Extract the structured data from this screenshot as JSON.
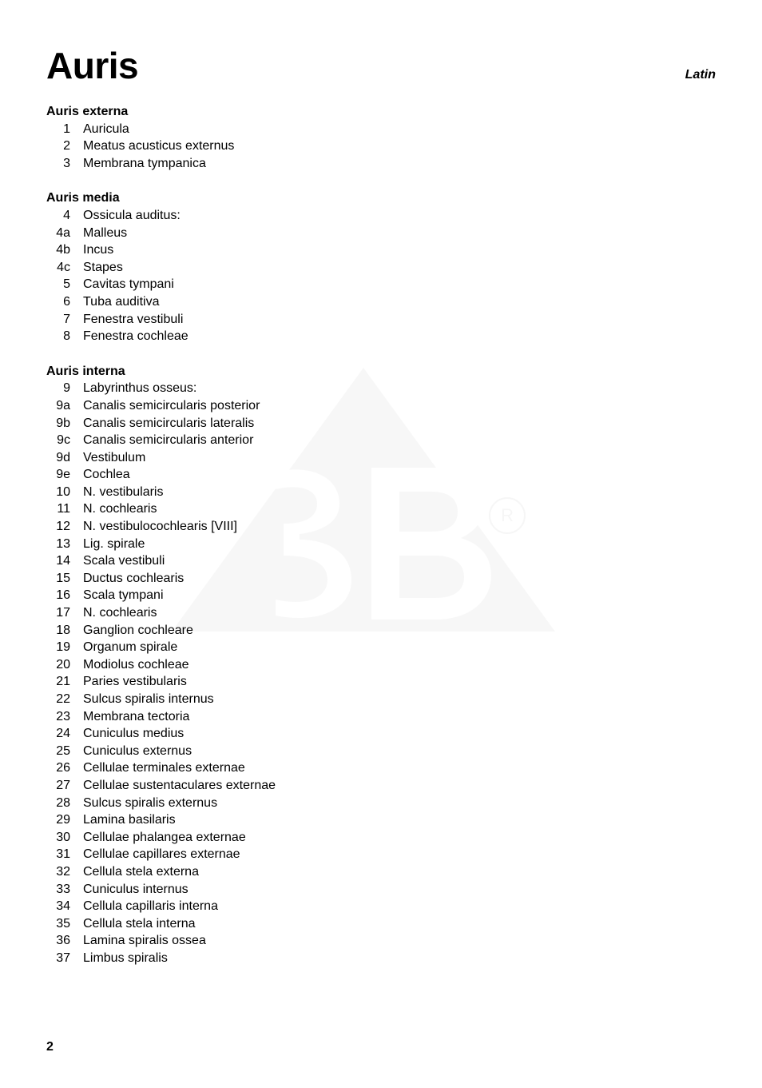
{
  "page": {
    "title": "Auris",
    "language_label": "Latin",
    "page_number": "2",
    "title_fontsize": 46,
    "title_fontweight": 800,
    "body_fontsize": 16,
    "body_line_height": 1.35,
    "text_color": "#000000",
    "background_color": "#ffffff",
    "watermark_color": "#000000",
    "watermark_opacity": 0.06
  },
  "sections": [
    {
      "heading": "Auris externa",
      "items": [
        {
          "num": "1",
          "term": "Auricula"
        },
        {
          "num": "2",
          "term": "Meatus acusticus externus"
        },
        {
          "num": "3",
          "term": "Membrana tympanica"
        }
      ]
    },
    {
      "heading": "Auris media",
      "items": [
        {
          "num": "4",
          "term": "Ossicula auditus:"
        },
        {
          "num": "4a",
          "term": "Malleus"
        },
        {
          "num": "4b",
          "term": "Incus"
        },
        {
          "num": "4c",
          "term": "Stapes"
        },
        {
          "num": "5",
          "term": "Cavitas tympani"
        },
        {
          "num": "6",
          "term": "Tuba auditiva"
        },
        {
          "num": "7",
          "term": "Fenestra vestibuli"
        },
        {
          "num": "8",
          "term": "Fenestra cochleae"
        }
      ]
    },
    {
      "heading": "Auris interna",
      "items": [
        {
          "num": "9",
          "term": "Labyrinthus osseus:"
        },
        {
          "num": "9a",
          "term": "Canalis semicircularis posterior"
        },
        {
          "num": "9b",
          "term": "Canalis semicircularis lateralis"
        },
        {
          "num": "9c",
          "term": "Canalis semicircularis anterior"
        },
        {
          "num": "9d",
          "term": "Vestibulum"
        },
        {
          "num": "9e",
          "term": "Cochlea"
        },
        {
          "num": "10",
          "term": "N. vestibularis"
        },
        {
          "num": "11",
          "term": "N. cochlearis"
        },
        {
          "num": "12",
          "term": "N. vestibulocochlearis [VIII]"
        },
        {
          "num": "13",
          "term": "Lig. spirale"
        },
        {
          "num": "14",
          "term": "Scala vestibuli"
        },
        {
          "num": "15",
          "term": "Ductus cochlearis"
        },
        {
          "num": "16",
          "term": "Scala tympani"
        },
        {
          "num": "17",
          "term": "N. cochlearis"
        },
        {
          "num": "18",
          "term": "Ganglion cochleare"
        },
        {
          "num": "19",
          "term": "Organum spirale"
        },
        {
          "num": "20",
          "term": "Modiolus cochleae"
        },
        {
          "num": "21",
          "term": "Paries vestibularis"
        },
        {
          "num": "22",
          "term": "Sulcus spiralis internus"
        },
        {
          "num": "23",
          "term": "Membrana tectoria"
        },
        {
          "num": "24",
          "term": "Cuniculus medius"
        },
        {
          "num": "25",
          "term": "Cuniculus externus"
        },
        {
          "num": "26",
          "term": "Cellulae terminales externae"
        },
        {
          "num": "27",
          "term": "Cellulae sustentaculares externae"
        },
        {
          "num": "28",
          "term": "Sulcus spiralis externus"
        },
        {
          "num": "29",
          "term": "Lamina basilaris"
        },
        {
          "num": "30",
          "term": "Cellulae phalangea externae"
        },
        {
          "num": "31",
          "term": "Cellulae capillares externae"
        },
        {
          "num": "32",
          "term": "Cellula stela externa"
        },
        {
          "num": "33",
          "term": "Cuniculus internus"
        },
        {
          "num": "34",
          "term": "Cellula capillaris interna"
        },
        {
          "num": "35",
          "term": "Cellula stela interna"
        },
        {
          "num": "36",
          "term": "Lamina spiralis ossea"
        },
        {
          "num": "37",
          "term": "Limbus spiralis"
        }
      ]
    }
  ]
}
